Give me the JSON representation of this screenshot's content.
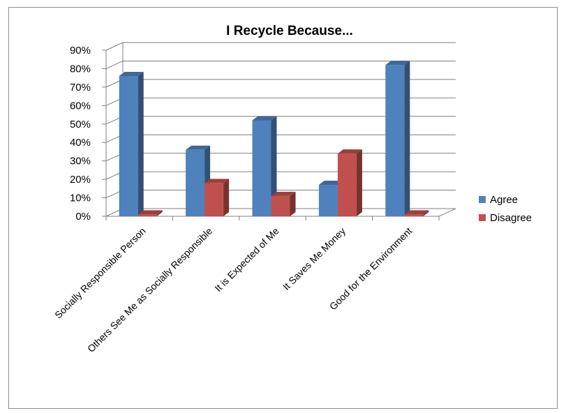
{
  "chart_data": {
    "type": "bar",
    "title": "I Recycle Because...",
    "xlabel": "",
    "ylabel": "",
    "ylim": [
      0,
      90
    ],
    "y_ticks": [
      "0%",
      "10%",
      "20%",
      "30%",
      "40%",
      "50%",
      "60%",
      "70%",
      "80%",
      "90%"
    ],
    "categories": [
      "Socially Responsible Person",
      "Others See Me as Socially Responsible",
      "It is Expected of Me",
      "It Saves Me Money",
      "Good for the Environment"
    ],
    "series": [
      {
        "name": "Agree",
        "values": [
          76,
          36,
          52,
          17,
          82
        ],
        "color": "#4f81bd"
      },
      {
        "name": "Disagree",
        "values": [
          1,
          18,
          11,
          34,
          1
        ],
        "color": "#c0504d"
      }
    ],
    "grid": true,
    "legend_position": "right",
    "style": "3d-clustered"
  }
}
